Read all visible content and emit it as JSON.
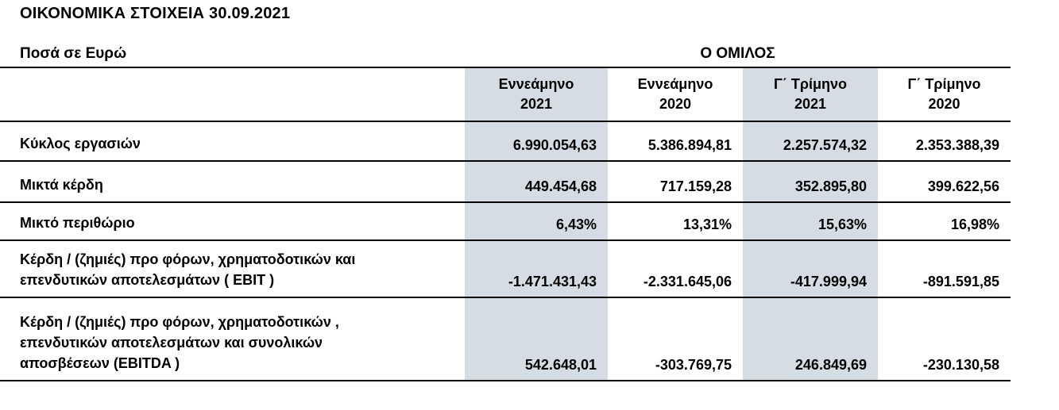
{
  "page": {
    "title": "ΟΙΚΟΝΟΜΙΚΑ ΣΤΟΙΧΕΙΑ 30.09.2021"
  },
  "table": {
    "units_label": "Ποσά σε Ευρώ",
    "group_header": "Ο ΟΜΙΛΟΣ",
    "shade_color": "#d6dce4",
    "line_color": "#000000",
    "columns": [
      {
        "label": [
          "Εννεάμηνο",
          "2021"
        ],
        "shaded": true
      },
      {
        "label": [
          "Εννεάμηνο",
          "2020"
        ],
        "shaded": false
      },
      {
        "label": [
          "Γ΄ Τρίμηνο",
          "2021"
        ],
        "shaded": true
      },
      {
        "label": [
          "Γ΄ Τρίμηνο",
          "2020"
        ],
        "shaded": false
      }
    ],
    "rows": [
      {
        "label": [
          "Κύκλος εργασιών"
        ],
        "values": [
          "6.990.054,63",
          "5.386.894,81",
          "2.257.574,32",
          "2.353.388,39"
        ]
      },
      {
        "label": [
          "Μικτά κέρδη"
        ],
        "values": [
          "449.454,68",
          "717.159,28",
          "352.895,80",
          "399.622,56"
        ]
      },
      {
        "label": [
          "Μικτό περιθώριο"
        ],
        "values": [
          "6,43%",
          "13,31%",
          "15,63%",
          "16,98%"
        ]
      },
      {
        "label": [
          "Κέρδη / (ζημιές) προ φόρων, χρηματοδοτικών και",
          "επενδυτικών αποτελεσμάτων  ( EBIT )"
        ],
        "values": [
          "-1.471.431,43",
          "-2.331.645,06",
          "-417.999,94",
          "-891.591,85"
        ]
      },
      {
        "label": [
          "Κέρδη / (ζημιές) προ φόρων, χρηματοδοτικών ,",
          "επενδυτικών αποτελεσμάτων και συνολικών",
          "αποσβέσεων (EBITDA )"
        ],
        "values": [
          "542.648,01",
          "-303.769,75",
          "246.849,69",
          "-230.130,58"
        ]
      }
    ]
  }
}
